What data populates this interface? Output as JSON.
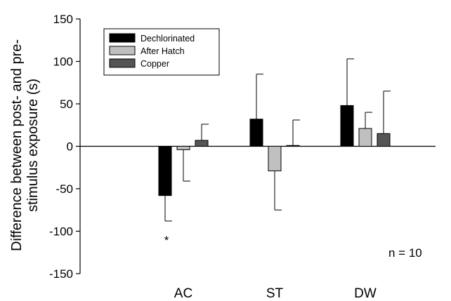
{
  "chart_data": {
    "type": "bar",
    "ylabel_lines": [
      "Difference between post- and pre-",
      "stimulus exposure (s)"
    ],
    "categories": [
      "AC",
      "ST",
      "DW"
    ],
    "ylim": [
      -150,
      150
    ],
    "yticks": [
      -150,
      -100,
      -50,
      0,
      50,
      100,
      150
    ],
    "grid": false,
    "legend_position": "top-left",
    "series": [
      {
        "name": "Dechlorinated",
        "color": "#000000",
        "values": [
          -58,
          32,
          48
        ],
        "errors": [
          30,
          53,
          55
        ]
      },
      {
        "name": "After Hatch",
        "color": "#c0c0c0",
        "values": [
          -4,
          -29,
          21
        ],
        "errors": [
          37,
          46,
          19
        ]
      },
      {
        "name": "Copper",
        "color": "#555555",
        "values": [
          7,
          1,
          15
        ],
        "errors": [
          19,
          30,
          50
        ]
      }
    ],
    "annotations": {
      "significance_marker": "*",
      "sample_size": "n = 10"
    }
  }
}
